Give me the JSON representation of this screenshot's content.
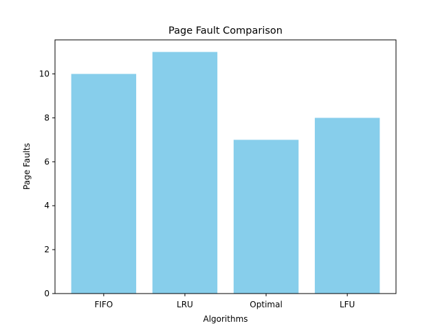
{
  "chart_data": {
    "type": "bar",
    "title": "Page Fault Comparison",
    "xlabel": "Algorithms",
    "ylabel": "Page Faults",
    "categories": [
      "FIFO",
      "LRU",
      "Optimal",
      "LFU"
    ],
    "values": [
      10,
      11,
      7,
      8
    ],
    "ylim": [
      0,
      11.55
    ],
    "yticks": [
      0,
      2,
      4,
      6,
      8,
      10
    ],
    "bar_color": "#87CEEB",
    "grid": false,
    "legend": "none"
  }
}
